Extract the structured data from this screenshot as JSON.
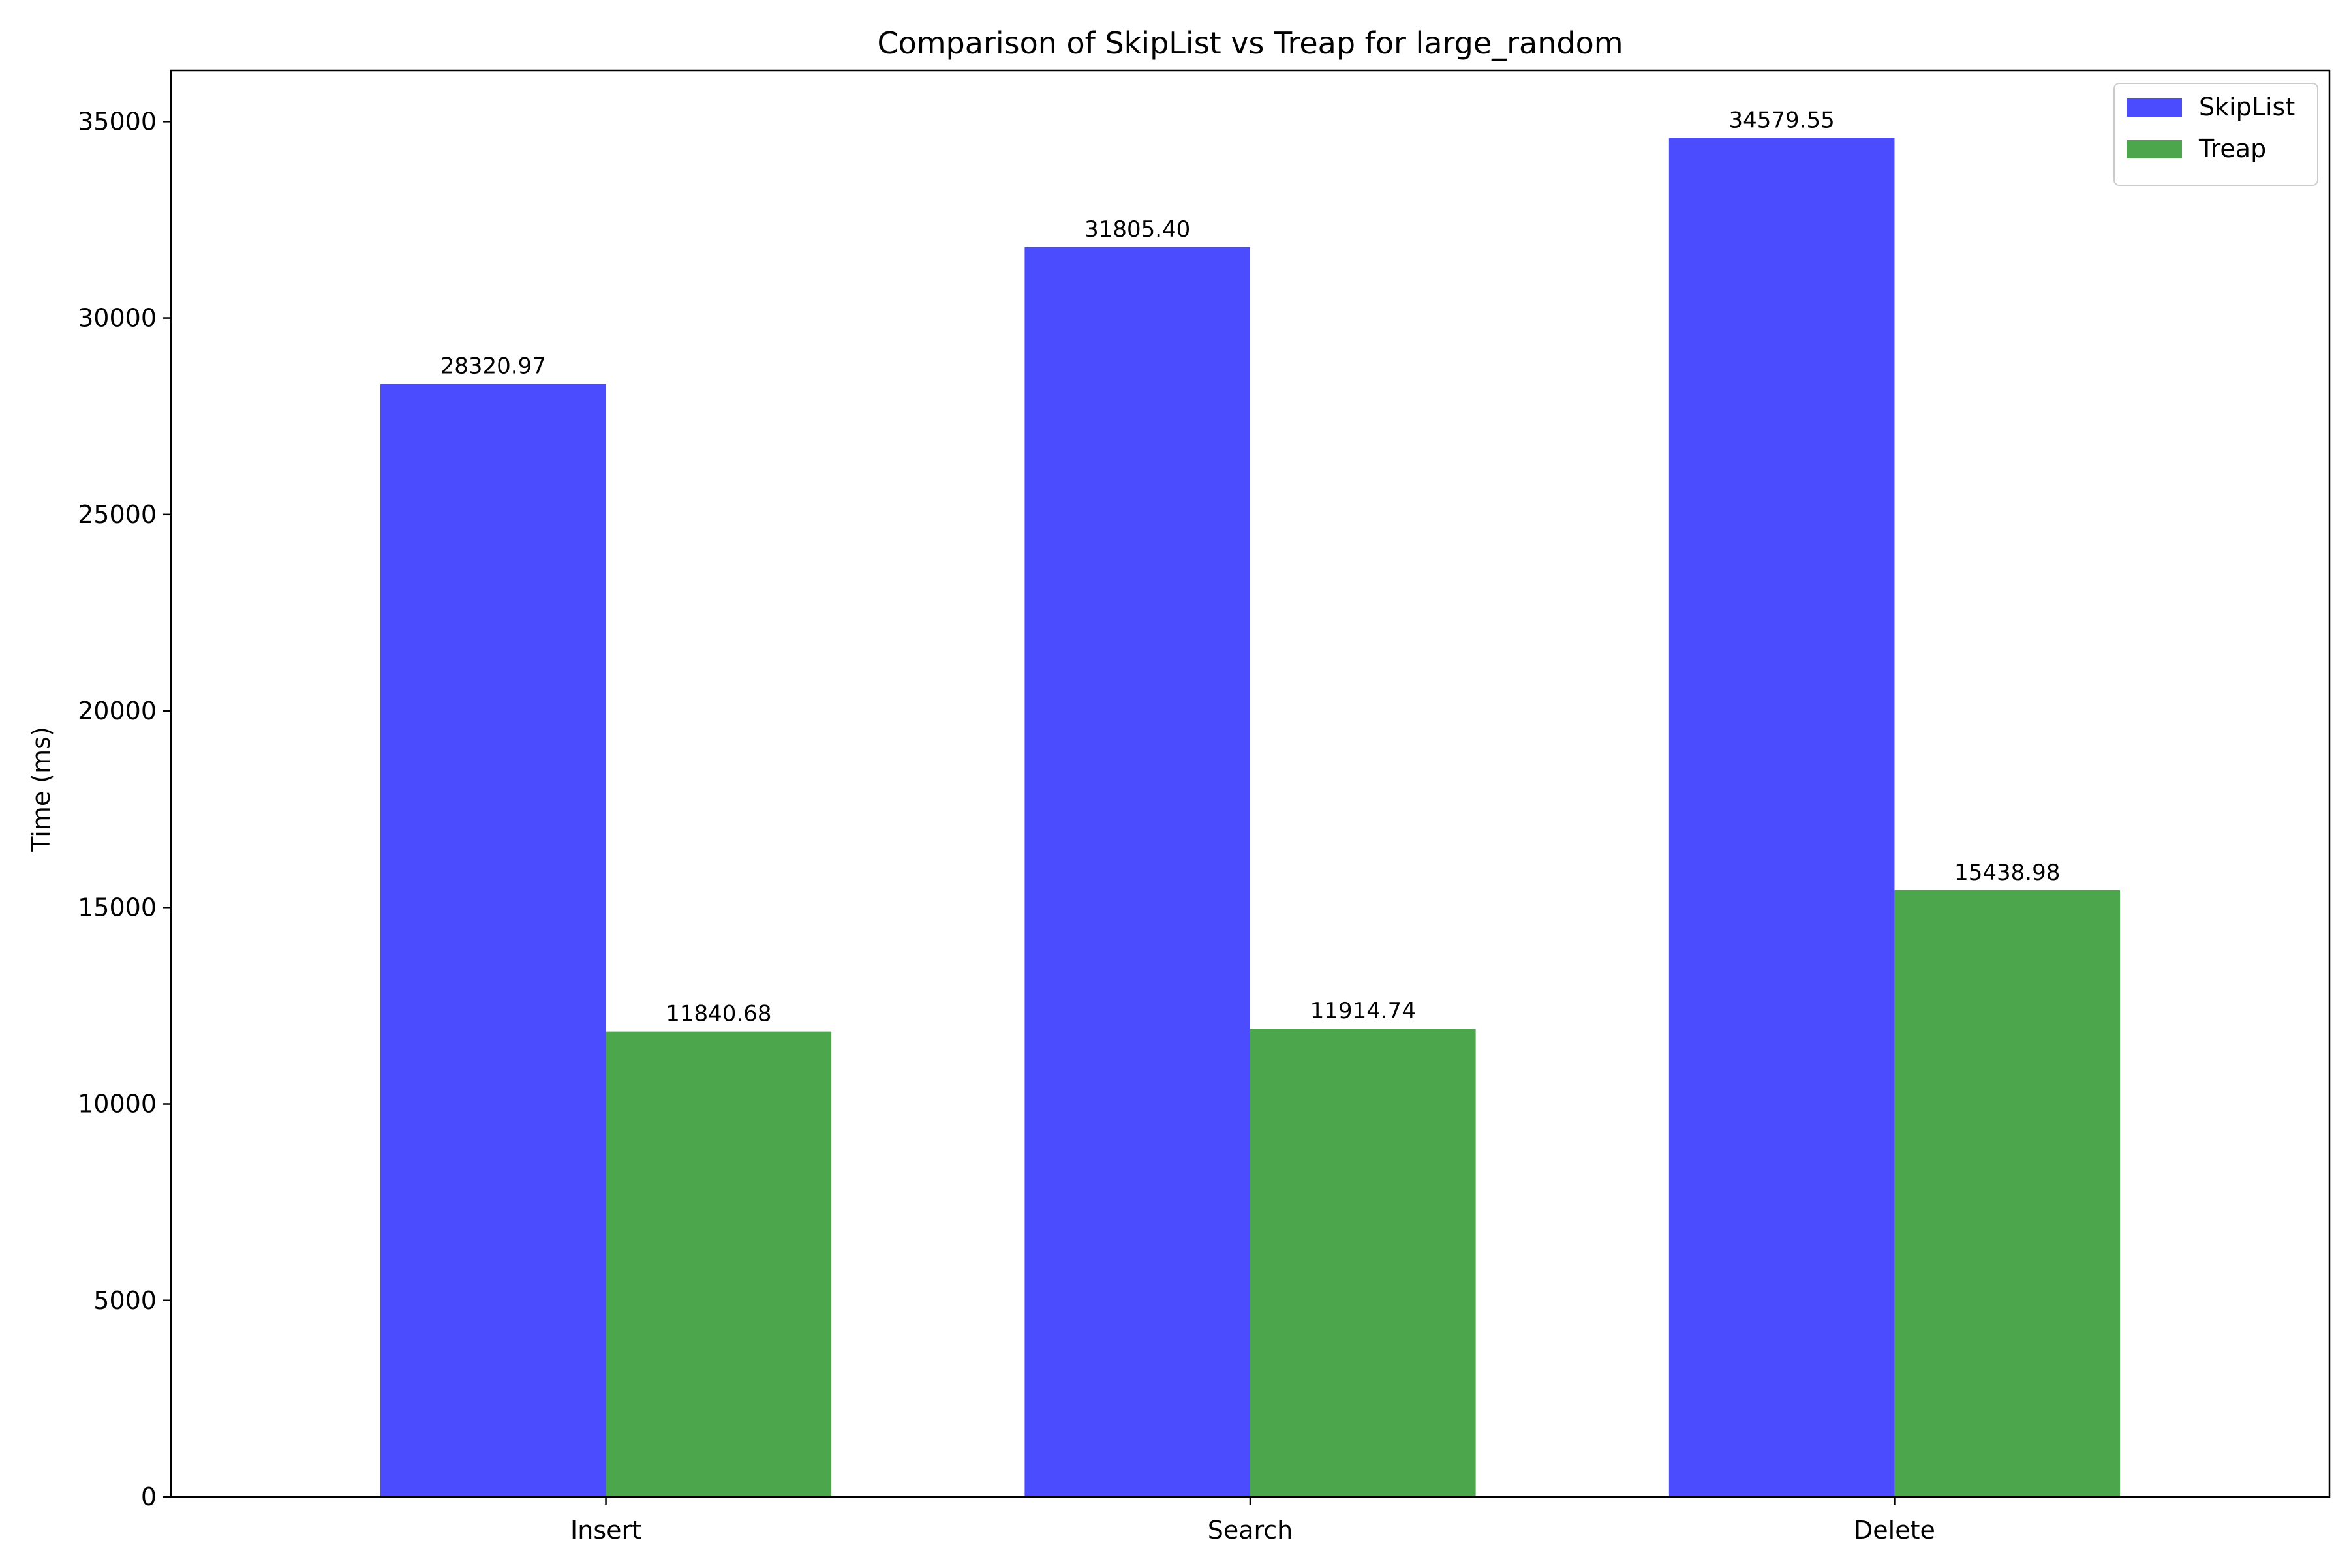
{
  "chart_data": {
    "type": "bar",
    "title": "Comparison of SkipList vs Treap for large_random",
    "xlabel": "",
    "ylabel": "Time (ms)",
    "categories": [
      "Insert",
      "Search",
      "Delete"
    ],
    "series": [
      {
        "name": "SkipList",
        "color": "#4c4cff",
        "values": [
          28320.97,
          31805.4,
          34579.55
        ],
        "labels": [
          "28320.97",
          "31805.40",
          "34579.55"
        ]
      },
      {
        "name": "Treap",
        "color": "#4ca64c",
        "values": [
          11840.68,
          11914.74,
          15438.98
        ],
        "labels": [
          "11840.68",
          "11914.74",
          "15438.98"
        ]
      }
    ],
    "ylim": [
      0,
      36300
    ],
    "yticks": [
      0,
      5000,
      10000,
      15000,
      20000,
      25000,
      30000,
      35000
    ],
    "grid": false,
    "legend_position": "top-right"
  }
}
